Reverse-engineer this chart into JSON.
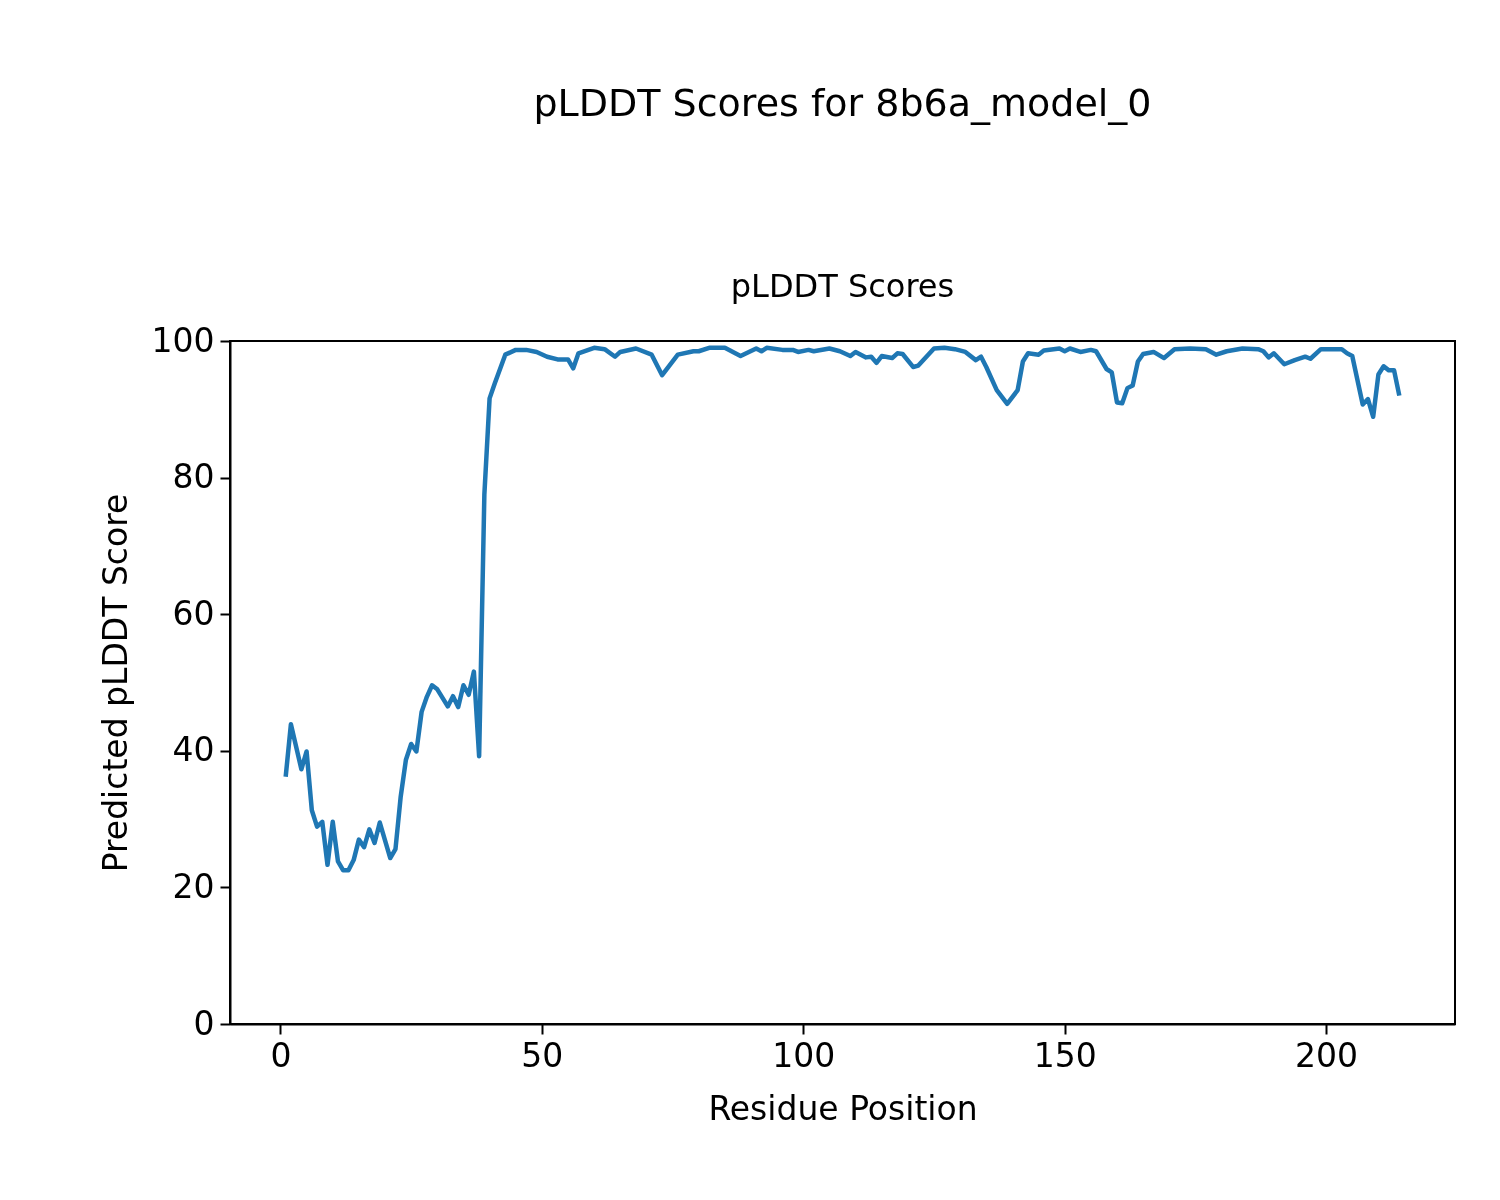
{
  "chart_data": {
    "type": "line",
    "title": "pLDDT Scores for 8b6a_model_0",
    "subtitle": "pLDDT Scores",
    "xlabel": "Residue Position",
    "ylabel": "Predicted pLDDT Score",
    "x": [
      1,
      2,
      4,
      5,
      6,
      7,
      8,
      9,
      10,
      11,
      12,
      13,
      14,
      15,
      16,
      17,
      18,
      19,
      21,
      22,
      23,
      24,
      25,
      26,
      27,
      28,
      29,
      30,
      32,
      33,
      34,
      35,
      36,
      37,
      38,
      39,
      40,
      41,
      43,
      45,
      47,
      49,
      51,
      53,
      55,
      56,
      57,
      60,
      62,
      64,
      65,
      68,
      71,
      73,
      76,
      79,
      80,
      82,
      85,
      88,
      91,
      92,
      93,
      96,
      98,
      99,
      101,
      102,
      105,
      107,
      109,
      110,
      112,
      113,
      114,
      115,
      117,
      118,
      119,
      121,
      122,
      125,
      127,
      129,
      131,
      133,
      134,
      135,
      137,
      139,
      141,
      142,
      143,
      145,
      146,
      149,
      150,
      151,
      153,
      155,
      156,
      158,
      159,
      160,
      161,
      162,
      163,
      164,
      165,
      167,
      169,
      171,
      174,
      177,
      179,
      181,
      184,
      187,
      188,
      189,
      190,
      192,
      194,
      196,
      197,
      199,
      203,
      204,
      205,
      207,
      208,
      209,
      210,
      211,
      212,
      213,
      214
    ],
    "series": [
      {
        "color": "#1f77b4",
        "values": [
          36.2,
          43.9,
          37.3,
          39.9,
          31.3,
          28.9,
          29.6,
          23.3,
          29.6,
          23.8,
          22.5,
          22.5,
          24.0,
          27.0,
          25.9,
          28.5,
          26.5,
          29.5,
          24.3,
          25.6,
          33.3,
          38.7,
          41.0,
          39.9,
          45.7,
          47.9,
          49.6,
          49.0,
          46.5,
          48.0,
          46.4,
          49.6,
          48.2,
          51.6,
          39.2,
          77.5,
          91.6,
          93.8,
          98.0,
          98.7,
          98.7,
          98.4,
          97.7,
          97.3,
          97.3,
          96.0,
          98.2,
          99.0,
          98.8,
          97.7,
          98.4,
          98.9,
          98.0,
          95.0,
          98.0,
          98.5,
          98.5,
          99.0,
          99.0,
          97.8,
          98.9,
          98.5,
          99.0,
          98.7,
          98.7,
          98.4,
          98.7,
          98.5,
          98.9,
          98.5,
          97.8,
          98.4,
          97.6,
          97.7,
          96.8,
          97.8,
          97.5,
          98.2,
          98.1,
          96.2,
          96.4,
          98.9,
          99.0,
          98.8,
          98.4,
          97.2,
          97.7,
          96.2,
          92.8,
          90.8,
          92.8,
          97.0,
          98.2,
          98.0,
          98.6,
          98.9,
          98.5,
          98.9,
          98.4,
          98.7,
          98.5,
          95.9,
          95.4,
          91.0,
          90.9,
          93.1,
          93.5,
          97.0,
          98.1,
          98.4,
          97.5,
          98.8,
          98.9,
          98.8,
          98.0,
          98.5,
          98.9,
          98.8,
          98.5,
          97.6,
          98.2,
          96.6,
          97.2,
          97.7,
          97.4,
          98.8,
          98.8,
          98.2,
          97.8,
          90.7,
          91.5,
          88.9,
          95.1,
          96.3,
          95.7,
          95.7,
          92.0
        ]
      }
    ],
    "xlim": [
      -9.65,
      224.65
    ],
    "ylim": [
      0,
      100
    ],
    "xticks": [
      0,
      50,
      100,
      150,
      200
    ],
    "yticks": [
      0,
      20,
      40,
      60,
      80,
      100
    ],
    "grid": false,
    "legend": false
  }
}
